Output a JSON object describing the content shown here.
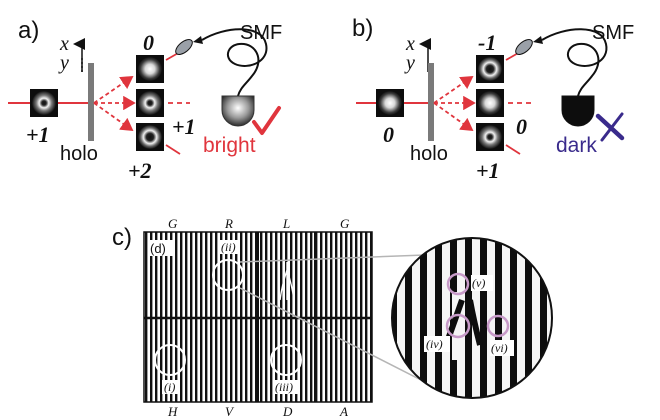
{
  "panel_a": {
    "label": "a)",
    "axis_x": "x",
    "axis_y": "y",
    "input_order": "+1",
    "order_top": "0",
    "order_mid": "+1",
    "order_bot": "+2",
    "holo": "holo",
    "smf": "SMF",
    "detector": "bright",
    "result_icon": "check-icon"
  },
  "panel_b": {
    "label": "b)",
    "axis_x": "x",
    "axis_y": "y",
    "input_order": "0",
    "order_top": "-1",
    "order_mid": "0",
    "order_bot": "+1",
    "holo": "holo",
    "smf": "SMF",
    "detector": "dark",
    "result_icon": "cross-icon"
  },
  "panel_c": {
    "label": "c)",
    "sub": "(d)",
    "top_labels": [
      "G",
      "R",
      "L",
      "G"
    ],
    "bottom_labels": [
      "H",
      "V",
      "D",
      "A"
    ],
    "circle_ii": "(ii)",
    "circle_i": "(i)",
    "circle_iii": "(iii)",
    "zoom_v": "(v)",
    "zoom_iv": "(iv)",
    "zoom_vi": "(vi)"
  },
  "colors": {
    "beam": "#e0353d",
    "bright_text": "#e0353d",
    "dark_text": "#3a2b8c",
    "cross": "#3a2b8c",
    "lens": "#9aa0a8",
    "defect_circle": "#c79ac8",
    "hologram": "#7a7a7a"
  }
}
